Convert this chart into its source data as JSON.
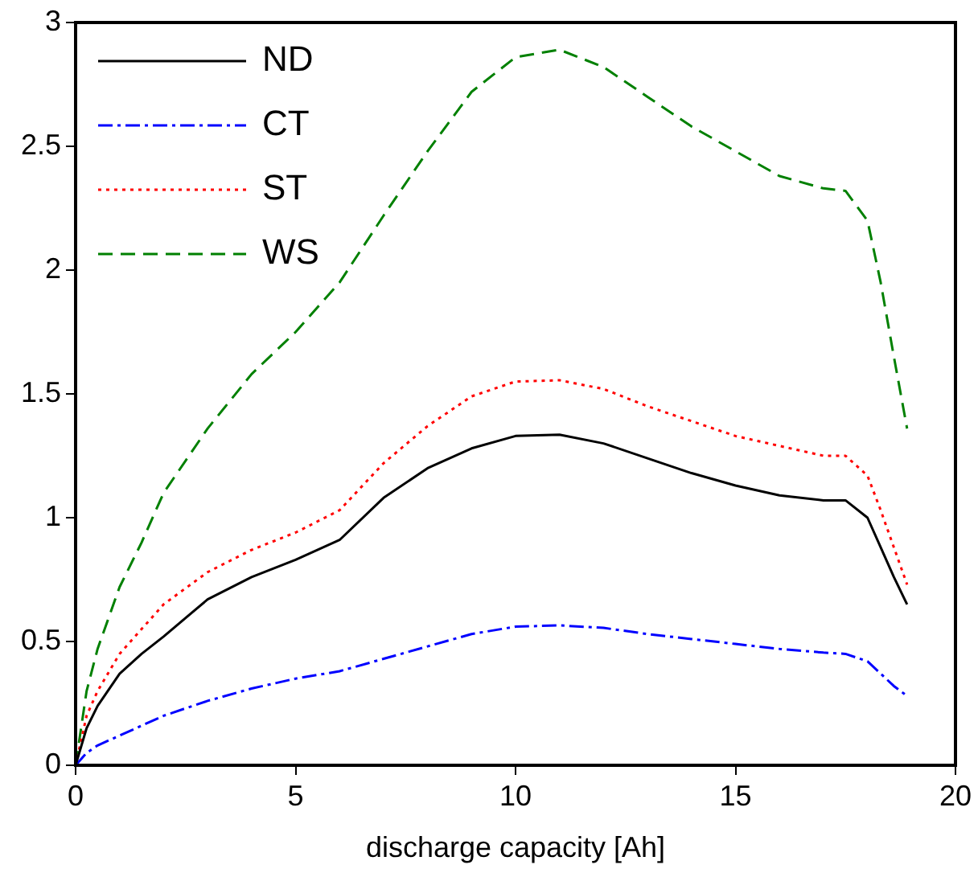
{
  "chart_data": {
    "type": "line",
    "xlabel": "discharge capacity [Ah]",
    "x": [
      0,
      0.25,
      0.5,
      1,
      1.5,
      2,
      3,
      4,
      5,
      6,
      7,
      8,
      9,
      10,
      11,
      12,
      13,
      14,
      15,
      16,
      17,
      17.5,
      18,
      18.3,
      18.6,
      18.9
    ],
    "series": [
      {
        "name": "ND",
        "color": "#000000",
        "line_style": "solid",
        "values": [
          0,
          0.15,
          0.24,
          0.37,
          0.45,
          0.52,
          0.67,
          0.76,
          0.83,
          0.91,
          1.08,
          1.2,
          1.28,
          1.33,
          1.335,
          1.3,
          1.24,
          1.18,
          1.13,
          1.09,
          1.07,
          1.07,
          1.0,
          0.88,
          0.76,
          0.65
        ]
      },
      {
        "name": "CT",
        "color": "#0000ff",
        "line_style": "dashdot",
        "values": [
          0,
          0.05,
          0.08,
          0.12,
          0.16,
          0.2,
          0.26,
          0.31,
          0.35,
          0.38,
          0.43,
          0.48,
          0.53,
          0.56,
          0.565,
          0.555,
          0.53,
          0.51,
          0.49,
          0.47,
          0.455,
          0.45,
          0.42,
          0.37,
          0.32,
          0.28
        ]
      },
      {
        "name": "ST",
        "color": "#ff0000",
        "line_style": "dotted",
        "values": [
          0,
          0.2,
          0.3,
          0.45,
          0.55,
          0.65,
          0.78,
          0.87,
          0.94,
          1.03,
          1.22,
          1.37,
          1.49,
          1.55,
          1.555,
          1.52,
          1.45,
          1.39,
          1.33,
          1.29,
          1.25,
          1.25,
          1.17,
          1.03,
          0.88,
          0.73
        ]
      },
      {
        "name": "WS",
        "color": "#008000",
        "line_style": "dashed",
        "values": [
          0,
          0.3,
          0.47,
          0.72,
          0.9,
          1.1,
          1.36,
          1.58,
          1.75,
          1.95,
          2.22,
          2.48,
          2.72,
          2.86,
          2.89,
          2.82,
          2.7,
          2.58,
          2.48,
          2.38,
          2.33,
          2.32,
          2.2,
          1.95,
          1.65,
          1.36
        ]
      }
    ],
    "xlim": [
      0,
      20
    ],
    "xticks": [
      0,
      5,
      10,
      15,
      20
    ],
    "ylim": [
      0,
      3
    ],
    "yticks": [
      0,
      0.5,
      1,
      1.5,
      2,
      2.5,
      3
    ],
    "grid": false,
    "legend": "top left",
    "marker": "none"
  }
}
